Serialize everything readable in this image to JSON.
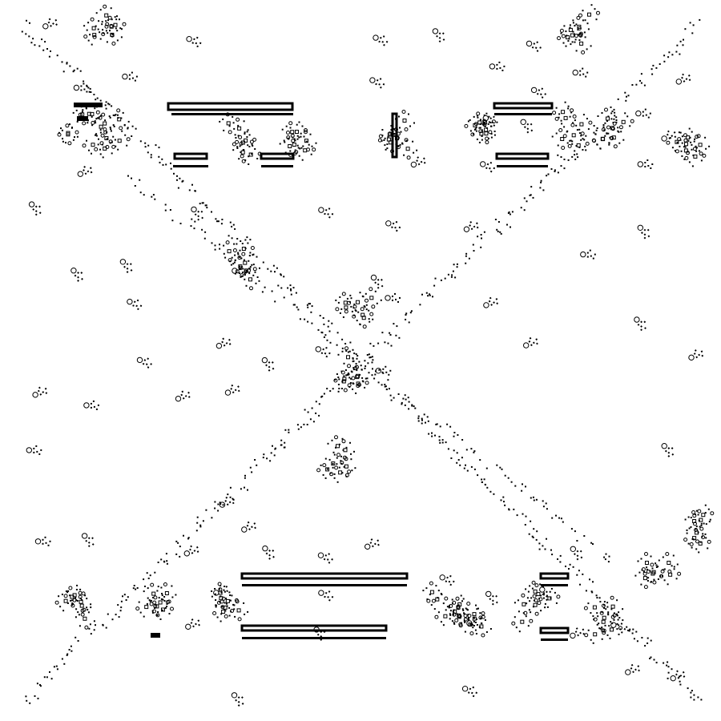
{
  "canvas": {
    "background": "#ffffff",
    "ink": "#000000"
  },
  "pattern": {
    "kind": "cellular-automaton-snapshot",
    "scattered_motifs": "glider-like-specks",
    "diagonals": 2,
    "cluster_groups": 2,
    "bar_groups": 2
  }
}
